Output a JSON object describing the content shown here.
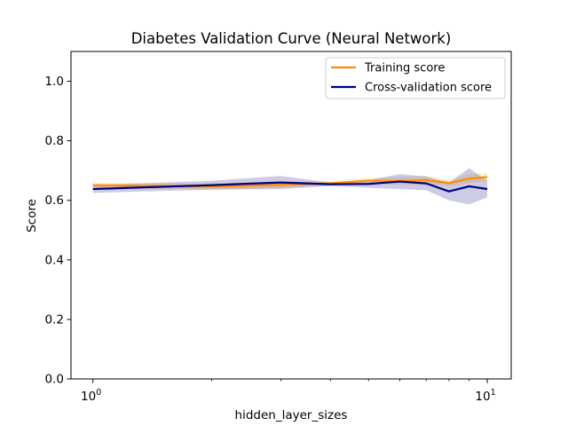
{
  "chart_data": {
    "type": "line",
    "title": "Diabetes Validation Curve (Neural Network)",
    "xlabel": "hidden_layer_sizes",
    "ylabel": "Score",
    "xscale": "log",
    "xlim": [
      0.88,
      11.5
    ],
    "ylim": [
      0.0,
      1.1
    ],
    "x_major_ticks": [
      1,
      10
    ],
    "x_tick_labels": [
      {
        "base": "10",
        "exp": "0"
      },
      {
        "base": "10",
        "exp": "1"
      }
    ],
    "x_minor_ticks": [
      2,
      3,
      4,
      5,
      6,
      7,
      8,
      9
    ],
    "y_ticks": [
      0.0,
      0.2,
      0.4,
      0.6,
      0.8,
      1.0
    ],
    "y_tick_labels": [
      "0.0",
      "0.2",
      "0.4",
      "0.6",
      "0.8",
      "1.0"
    ],
    "grid": false,
    "legend_position": "upper right",
    "x": [
      1,
      2,
      3,
      4,
      5,
      6,
      7,
      8,
      9,
      10
    ],
    "series": [
      {
        "name": "Training score",
        "color": "#ff8c00",
        "band_color": "#ffa500",
        "values": [
          0.651,
          0.646,
          0.652,
          0.657,
          0.666,
          0.665,
          0.668,
          0.658,
          0.673,
          0.678
        ],
        "lower": [
          0.643,
          0.635,
          0.641,
          0.65,
          0.656,
          0.652,
          0.653,
          0.648,
          0.658,
          0.664
        ],
        "upper": [
          0.659,
          0.657,
          0.663,
          0.664,
          0.676,
          0.678,
          0.683,
          0.668,
          0.688,
          0.692
        ]
      },
      {
        "name": "Cross-validation score",
        "color": "#000080",
        "band_color": "#000080",
        "values": [
          0.638,
          0.651,
          0.66,
          0.654,
          0.655,
          0.663,
          0.657,
          0.63,
          0.647,
          0.638
        ],
        "lower": [
          0.625,
          0.636,
          0.638,
          0.648,
          0.642,
          0.638,
          0.634,
          0.6,
          0.586,
          0.61
        ],
        "upper": [
          0.651,
          0.666,
          0.682,
          0.66,
          0.668,
          0.688,
          0.68,
          0.66,
          0.708,
          0.666
        ]
      }
    ]
  }
}
